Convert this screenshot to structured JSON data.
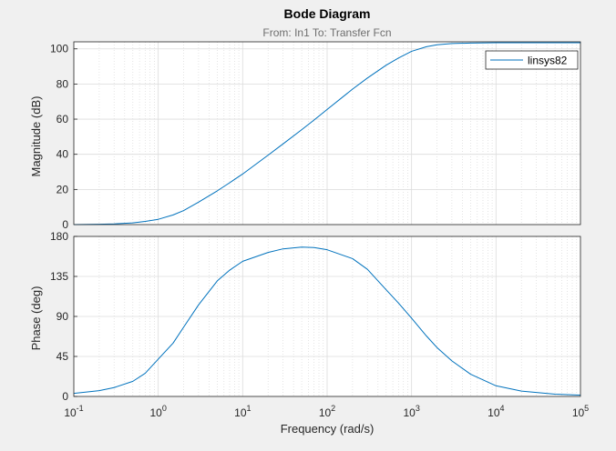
{
  "chart_data": {
    "type": "line",
    "title": "Bode Diagram",
    "subtitle": "From: In1  To: Transfer Fcn",
    "xlabel": "Frequency  (rad/s)",
    "x_scale": "log",
    "xlim": [
      0.1,
      100000
    ],
    "grid": true,
    "legend": {
      "entries": [
        "linsys82"
      ],
      "placement": "top-right"
    },
    "line_color": "#0072bd",
    "x_ticks": [
      {
        "base": "10",
        "exp": "-1"
      },
      {
        "base": "10",
        "exp": "0"
      },
      {
        "base": "10",
        "exp": "1"
      },
      {
        "base": "10",
        "exp": "2"
      },
      {
        "base": "10",
        "exp": "3"
      },
      {
        "base": "10",
        "exp": "4"
      },
      {
        "base": "10",
        "exp": "5"
      }
    ],
    "panels": [
      {
        "name": "magnitude",
        "ylabel": "Magnitude (dB)",
        "ylim": [
          0,
          104
        ],
        "yticks": [
          "0",
          "20",
          "40",
          "60",
          "80",
          "100"
        ],
        "series": [
          {
            "name": "linsys82",
            "x": [
              0.1,
              0.2,
              0.3,
              0.5,
              0.7,
              1,
              1.5,
              2,
              3,
              5,
              7,
              10,
              20,
              30,
              50,
              70,
              100,
              200,
              300,
              500,
              700,
              1000,
              1500,
              2000,
              3000,
              5000,
              10000,
              100000
            ],
            "y": [
              0.0,
              0.2,
              0.4,
              1.0,
              1.8,
              3.0,
              5.5,
              8.0,
              12.8,
              19.2,
              23.8,
              28.8,
              39.5,
              45.9,
              54.0,
              59.5,
              65.5,
              77.1,
              83.4,
              90.7,
              94.8,
              98.6,
              101.2,
              102.3,
              103.0,
              103.3,
              103.5,
              103.5
            ]
          }
        ]
      },
      {
        "name": "phase",
        "ylabel": "Phase (deg)",
        "ylim": [
          0,
          180
        ],
        "yticks": [
          "0",
          "45",
          "90",
          "135",
          "180"
        ],
        "series": [
          {
            "name": "linsys82",
            "x": [
              0.1,
              0.2,
              0.3,
              0.5,
              0.7,
              1,
              1.5,
              2,
              3,
              5,
              7,
              10,
              20,
              30,
              50,
              70,
              100,
              200,
              300,
              500,
              700,
              1000,
              1500,
              2000,
              3000,
              5000,
              10000,
              20000,
              50000,
              100000
            ],
            "y": [
              3.5,
              6.5,
              10.0,
              17.0,
              26.0,
              42.0,
              60.0,
              78.0,
              103.0,
              130.0,
              142.0,
              152.0,
              162.0,
              166.0,
              168.0,
              167.5,
              165.0,
              155.0,
              143.0,
              120.0,
              105.0,
              88.0,
              68.0,
              55.0,
              40.0,
              25.0,
              12.0,
              6.0,
              2.5,
              1.5
            ]
          }
        ]
      }
    ]
  }
}
